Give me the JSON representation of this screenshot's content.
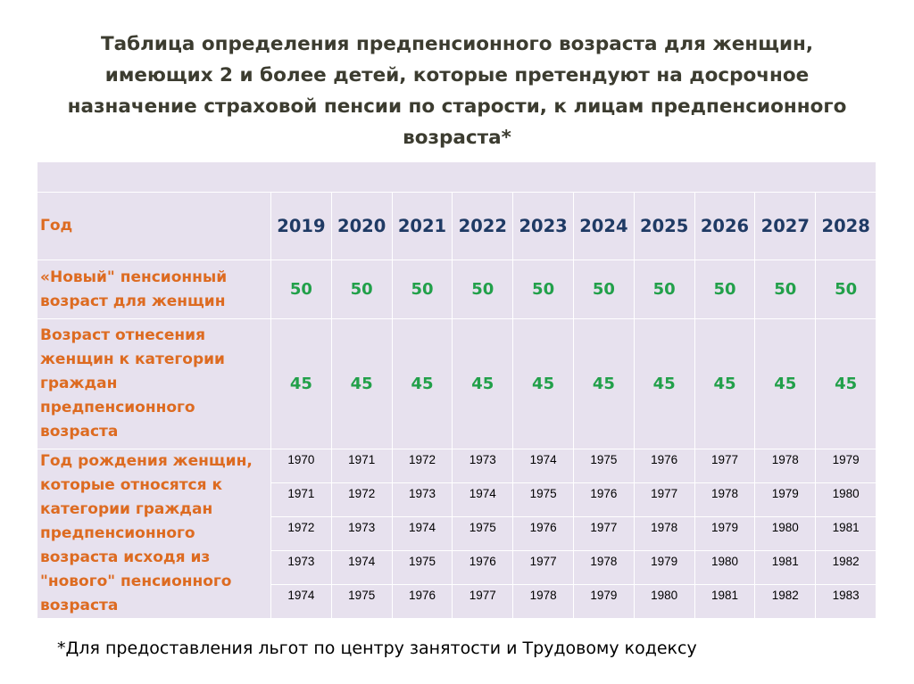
{
  "title": "Таблица определения предпенсионного возраста для женщин, имеющих 2 и более детей, которые претендуют на досрочное назначение страховой пенсии по старости, к лицам предпенсионного возраста*",
  "table": {
    "year_label": "Год",
    "years": [
      "2019",
      "2020",
      "2021",
      "2022",
      "2023",
      "2024",
      "2025",
      "2026",
      "2027",
      "2028"
    ],
    "new_age_label": "«Новый\" пенсионный возраст для женщин",
    "new_age": [
      "50",
      "50",
      "50",
      "50",
      "50",
      "50",
      "50",
      "50",
      "50",
      "50"
    ],
    "pre_age_label": "Возраст отнесения женщин к категории граждан предпенсионного возраста",
    "pre_age": [
      "45",
      "45",
      "45",
      "45",
      "45",
      "45",
      "45",
      "45",
      "45",
      "45"
    ],
    "birth_label": "Год рождения женщин, которые относятся к категории граждан предпенсионного возраста исходя из \"нового\" пенсионного возраста",
    "birth_years": [
      [
        "1970",
        "1971",
        "1972",
        "1973",
        "1974",
        "1975",
        "1976",
        "1977",
        "1978",
        "1979"
      ],
      [
        "1971",
        "1972",
        "1973",
        "1974",
        "1975",
        "1976",
        "1977",
        "1978",
        "1979",
        "1980"
      ],
      [
        "1972",
        "1973",
        "1974",
        "1975",
        "1976",
        "1977",
        "1978",
        "1979",
        "1980",
        "1981"
      ],
      [
        "1973",
        "1974",
        "1975",
        "1976",
        "1977",
        "1978",
        "1979",
        "1980",
        "1981",
        "1982"
      ],
      [
        "1974",
        "1975",
        "1976",
        "1977",
        "1978",
        "1979",
        "1980",
        "1981",
        "1982",
        "1983"
      ]
    ]
  },
  "footnote": "*Для предоставления льгот по центру занятости и Трудовому кодексу"
}
